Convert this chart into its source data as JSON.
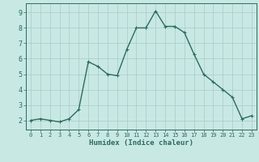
{
  "x": [
    0,
    1,
    2,
    3,
    4,
    5,
    6,
    7,
    8,
    9,
    10,
    11,
    12,
    13,
    14,
    15,
    16,
    17,
    18,
    19,
    20,
    21,
    22,
    23
  ],
  "y": [
    2.0,
    2.1,
    2.0,
    1.9,
    2.1,
    2.7,
    5.8,
    5.5,
    5.0,
    4.9,
    6.6,
    8.0,
    8.0,
    9.1,
    8.1,
    8.1,
    7.7,
    6.3,
    5.0,
    4.5,
    4.0,
    3.5,
    2.1,
    2.3
  ],
  "line_color": "#2e6b5e",
  "marker": "+",
  "bg_color": "#c8e8e4",
  "grid_color": "#a8ccc8",
  "xlabel": "Humidex (Indice chaleur)",
  "xlim": [
    -0.5,
    23.5
  ],
  "ylim": [
    1.4,
    9.6
  ],
  "yticks": [
    2,
    3,
    4,
    5,
    6,
    7,
    8,
    9
  ],
  "xticks": [
    0,
    1,
    2,
    3,
    4,
    5,
    6,
    7,
    8,
    9,
    10,
    11,
    12,
    13,
    14,
    15,
    16,
    17,
    18,
    19,
    20,
    21,
    22,
    23
  ],
  "tick_color": "#2e6b5e",
  "label_color": "#2e6b5e",
  "linewidth": 1.0,
  "markersize": 3.5
}
